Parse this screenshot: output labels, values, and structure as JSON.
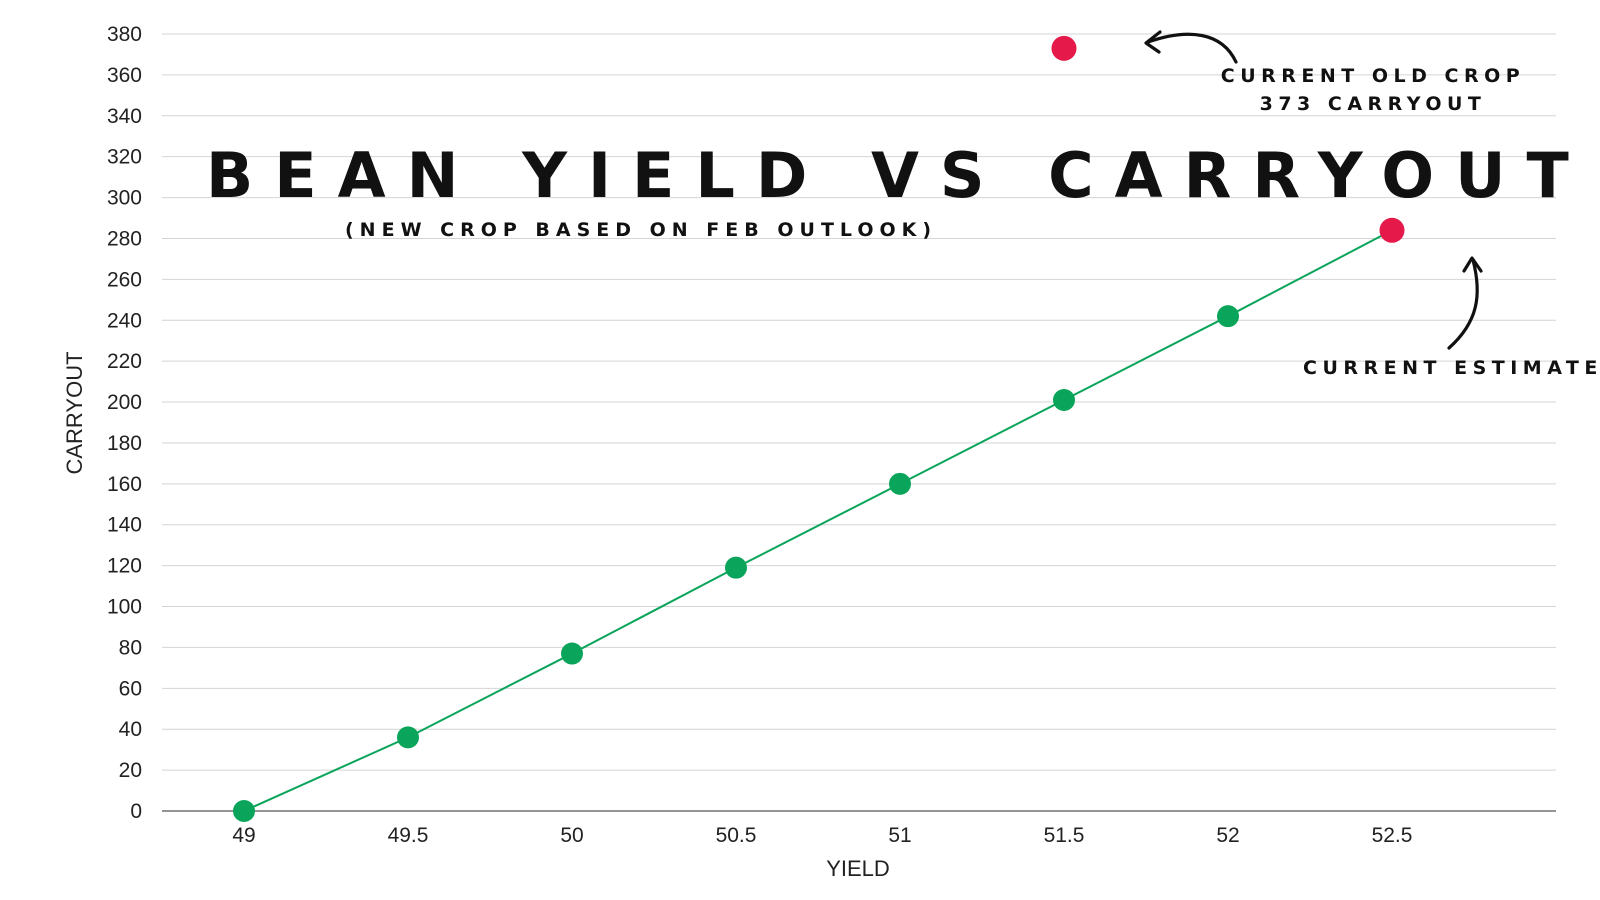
{
  "chart_data": {
    "type": "scatter",
    "title": "BEAN YIELD VS CARRYOUT",
    "subtitle": "(NEW CROP BASED ON FEB OUTLOOK)",
    "xlabel": "YIELD",
    "ylabel": "CARRYOUT",
    "x_ticks": [
      "49",
      "49.5",
      "50",
      "50.5",
      "51",
      "51.5",
      "52",
      "52.5"
    ],
    "y_ticks": [
      "0",
      "20",
      "40",
      "60",
      "80",
      "100",
      "120",
      "140",
      "160",
      "180",
      "200",
      "220",
      "240",
      "260",
      "280",
      "300",
      "320",
      "340",
      "360",
      "380"
    ],
    "xlim": [
      48.75,
      53.0
    ],
    "ylim": [
      0,
      380
    ],
    "grid": true,
    "series": [
      {
        "color": "#0aa55a",
        "points": [
          {
            "x": 49,
            "y": 0
          },
          {
            "x": 49.5,
            "y": 36
          },
          {
            "x": 50,
            "y": 77
          },
          {
            "x": 50.5,
            "y": 119
          },
          {
            "x": 51,
            "y": 160
          },
          {
            "x": 51.5,
            "y": 201
          },
          {
            "x": 52,
            "y": 242
          }
        ]
      },
      {
        "color": "#e5194a",
        "points": [
          {
            "x": 51.5,
            "y": 373
          },
          {
            "x": 52.5,
            "y": 284
          }
        ]
      }
    ],
    "annotations": [
      {
        "lines": [
          "CURRENT OLD CROP",
          "373 CARRYOUT"
        ],
        "x": 51.5,
        "y": 373
      },
      {
        "lines": [
          "CURRENT ESTIMATE"
        ],
        "x": 52.5,
        "y": 284
      }
    ]
  }
}
